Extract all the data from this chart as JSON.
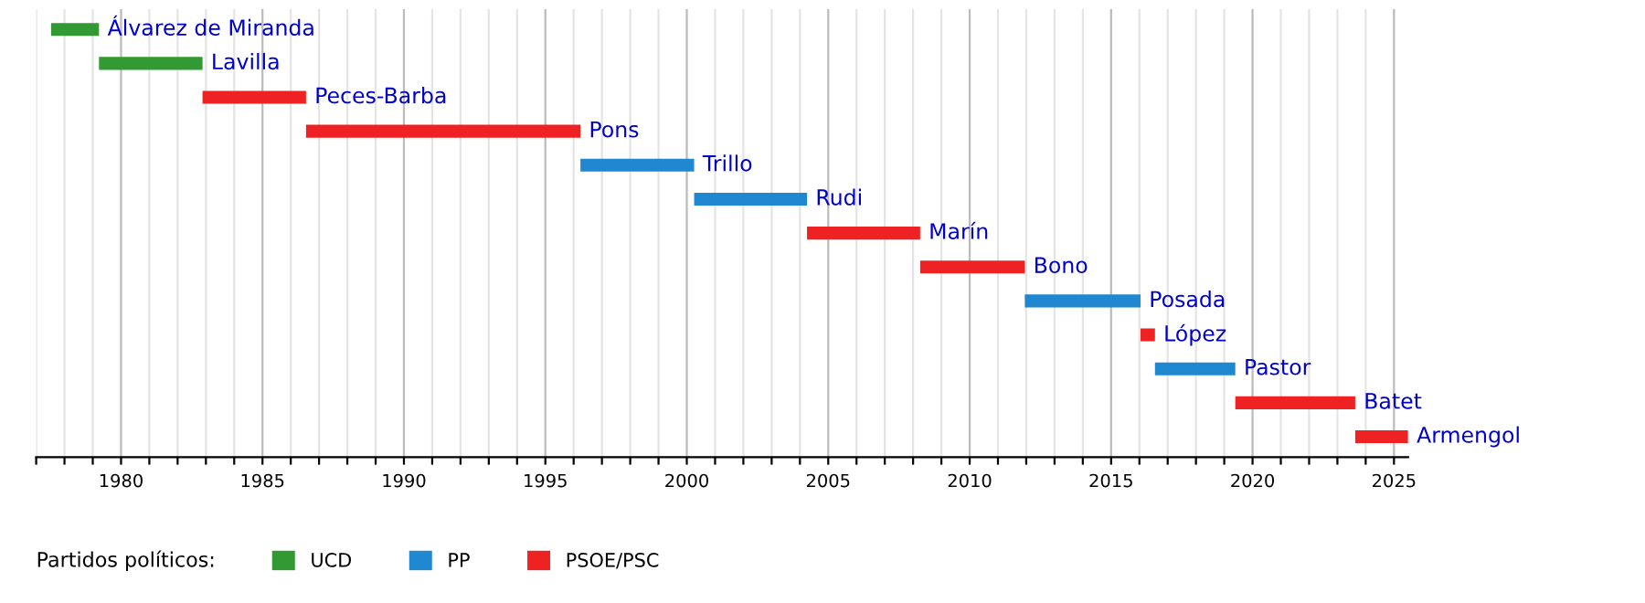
{
  "chart_data": {
    "type": "bar",
    "orientation": "horizontal",
    "legend_title": "Partidos políticos:",
    "legend": "bottom",
    "grid": "x",
    "tick_labels": "x",
    "categories": [
      "Álvarez de Miranda",
      "Lavilla",
      "Peces-Barba",
      "Pons",
      "Trillo",
      "Rudi",
      "Marín",
      "Bono",
      "Posada",
      "López",
      "Pastor",
      "Batet",
      "Armengol"
    ],
    "series": [
      {
        "name": "UCD",
        "color": "#339933",
        "base": [
          1977.53,
          1979.22,
          null,
          null,
          null,
          null,
          null,
          null,
          null,
          null,
          null,
          null,
          null
        ],
        "values": [
          1.69,
          3.66,
          null,
          null,
          null,
          null,
          null,
          null,
          null,
          null,
          null,
          null,
          null
        ]
      },
      {
        "name": "PP",
        "color": "#1f88d0",
        "base": [
          null,
          null,
          null,
          null,
          1996.24,
          2000.26,
          null,
          null,
          2011.95,
          null,
          2016.55,
          null,
          null
        ],
        "values": [
          null,
          null,
          null,
          null,
          4.02,
          3.99,
          null,
          null,
          4.09,
          null,
          2.84,
          null,
          null
        ]
      },
      {
        "name": "PSOE/PSC",
        "color": "#ee2222",
        "base": [
          null,
          null,
          1982.88,
          1986.54,
          null,
          null,
          2004.25,
          2008.25,
          null,
          2016.04,
          null,
          2019.39,
          2023.63
        ],
        "values": [
          null,
          null,
          3.66,
          9.7,
          null,
          null,
          4.0,
          3.7,
          null,
          0.51,
          null,
          4.24,
          1.87
        ]
      }
    ],
    "xlim": [
      1977,
      2025.5
    ],
    "xticks": [
      {
        "value": 1977,
        "label": null
      },
      {
        "value": 1978,
        "label": null
      },
      {
        "value": 1979,
        "label": null
      },
      1980,
      {
        "value": 1981,
        "label": null
      },
      {
        "value": 1982,
        "label": null
      },
      {
        "value": 1983,
        "label": null
      },
      {
        "value": 1984,
        "label": null
      },
      1985,
      {
        "value": 1986,
        "label": null
      },
      {
        "value": 1987,
        "label": null
      },
      {
        "value": 1988,
        "label": null
      },
      {
        "value": 1989,
        "label": null
      },
      1990,
      {
        "value": 1991,
        "label": null
      },
      {
        "value": 1992,
        "label": null
      },
      {
        "value": 1993,
        "label": null
      },
      {
        "value": 1994,
        "label": null
      },
      1995,
      {
        "value": 1996,
        "label": null
      },
      {
        "value": 1997,
        "label": null
      },
      {
        "value": 1998,
        "label": null
      },
      {
        "value": 1999,
        "label": null
      },
      2000,
      {
        "value": 2001,
        "label": null
      },
      {
        "value": 2002,
        "label": null
      },
      {
        "value": 2003,
        "label": null
      },
      {
        "value": 2004,
        "label": null
      },
      2005,
      {
        "value": 2006,
        "label": null
      },
      {
        "value": 2007,
        "label": null
      },
      {
        "value": 2008,
        "label": null
      },
      {
        "value": 2009,
        "label": null
      },
      2010,
      {
        "value": 2011,
        "label": null
      },
      {
        "value": 2012,
        "label": null
      },
      {
        "value": 2013,
        "label": null
      },
      {
        "value": 2014,
        "label": null
      },
      2015,
      {
        "value": 2016,
        "label": null
      },
      {
        "value": 2017,
        "label": null
      },
      {
        "value": 2018,
        "label": null
      },
      {
        "value": 2019,
        "label": null
      },
      2020,
      {
        "value": 2021,
        "label": null
      },
      {
        "value": 2022,
        "label": null
      },
      {
        "value": 2023,
        "label": null
      },
      {
        "value": 2024,
        "label": null
      },
      2025
    ]
  }
}
